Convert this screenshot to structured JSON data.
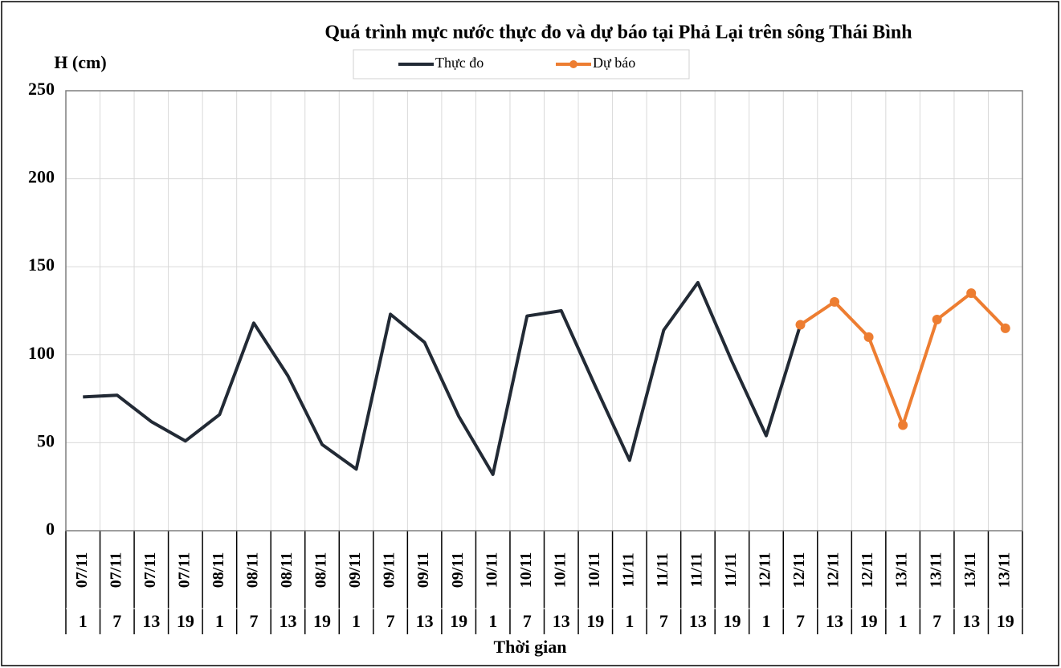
{
  "chart_data": {
    "type": "line",
    "title": "Quá trình mực nước thực đo và dự báo tại Phả Lại trên sông Thái Bình",
    "y_label": "H (cm)",
    "x_label": "Thời gian",
    "categories": [
      "07/11",
      "07/11",
      "07/11",
      "07/11",
      "08/11",
      "08/11",
      "08/11",
      "08/11",
      "09/11",
      "09/11",
      "09/11",
      "09/11",
      "10/11",
      "10/11",
      "10/11",
      "10/11",
      "11/11",
      "11/11",
      "11/11",
      "11/11",
      "12/11",
      "12/11",
      "12/11",
      "12/11",
      "13/11",
      "13/11",
      "13/11",
      "13/11"
    ],
    "category_hours": [
      1,
      7,
      13,
      19,
      1,
      7,
      13,
      19,
      1,
      7,
      13,
      19,
      1,
      7,
      13,
      19,
      1,
      7,
      13,
      19,
      1,
      7,
      13,
      19,
      1,
      7,
      13,
      19
    ],
    "series": [
      {
        "name": "Thực đo",
        "color": "#222a35",
        "marker": false,
        "values": [
          76,
          77,
          62,
          51,
          66,
          118,
          88,
          49,
          35,
          123,
          107,
          65,
          32,
          122,
          125,
          82,
          40,
          114,
          141,
          96,
          54,
          117,
          null,
          null,
          null,
          null,
          null,
          null
        ]
      },
      {
        "name": "Dự báo",
        "color": "#ed7d31",
        "marker": true,
        "values": [
          null,
          null,
          null,
          null,
          null,
          null,
          null,
          null,
          null,
          null,
          null,
          null,
          null,
          null,
          null,
          null,
          null,
          null,
          null,
          null,
          null,
          117,
          130,
          110,
          60,
          120,
          135,
          115
        ]
      }
    ],
    "ylim": [
      0,
      250
    ],
    "yticks": [
      0,
      50,
      100,
      150,
      200,
      250
    ],
    "grid": true
  }
}
